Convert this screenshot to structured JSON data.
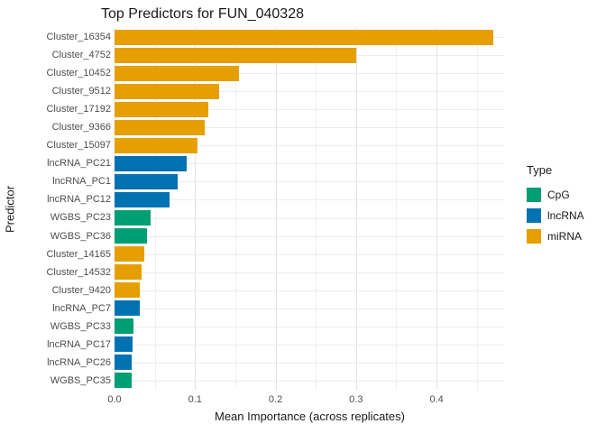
{
  "chart_data": {
    "type": "bar",
    "orientation": "horizontal",
    "title": "Top Predictors for FUN_040328",
    "xlabel": "Mean Importance (across replicates)",
    "ylabel": "Predictor",
    "xlim": [
      0,
      0.485
    ],
    "x_ticks": [
      0.0,
      0.1,
      0.2,
      0.3,
      0.4
    ],
    "x_tick_labels": [
      "0.0",
      "0.1",
      "0.2",
      "0.3",
      "0.4"
    ],
    "x_minor_ticks": [
      0.05,
      0.15,
      0.25,
      0.35,
      0.45
    ],
    "grid": true,
    "legend": {
      "title": "Type",
      "position": "right",
      "entries": [
        {
          "label": "CpG",
          "color": "#009E73"
        },
        {
          "label": "lncRNA",
          "color": "#0072B2"
        },
        {
          "label": "miRNA",
          "color": "#E69F00"
        }
      ]
    },
    "bars": [
      {
        "label": "Cluster_16354",
        "type": "miRNA",
        "value": 0.47
      },
      {
        "label": "Cluster_4752",
        "type": "miRNA",
        "value": 0.3
      },
      {
        "label": "Cluster_10452",
        "type": "miRNA",
        "value": 0.155
      },
      {
        "label": "Cluster_9512",
        "type": "miRNA",
        "value": 0.13
      },
      {
        "label": "Cluster_17192",
        "type": "miRNA",
        "value": 0.117
      },
      {
        "label": "Cluster_9366",
        "type": "miRNA",
        "value": 0.112
      },
      {
        "label": "Cluster_15097",
        "type": "miRNA",
        "value": 0.103
      },
      {
        "label": "lncRNA_PC21",
        "type": "lncRNA",
        "value": 0.09
      },
      {
        "label": "lncRNA_PC1",
        "type": "lncRNA",
        "value": 0.078
      },
      {
        "label": "lncRNA_PC12",
        "type": "lncRNA",
        "value": 0.068
      },
      {
        "label": "WGBS_PC23",
        "type": "CpG",
        "value": 0.045
      },
      {
        "label": "WGBS_PC36",
        "type": "CpG",
        "value": 0.04
      },
      {
        "label": "Cluster_14165",
        "type": "miRNA",
        "value": 0.037
      },
      {
        "label": "Cluster_14532",
        "type": "miRNA",
        "value": 0.034
      },
      {
        "label": "Cluster_9420",
        "type": "miRNA",
        "value": 0.031
      },
      {
        "label": "lncRNA_PC7",
        "type": "lncRNA",
        "value": 0.031
      },
      {
        "label": "WGBS_PC33",
        "type": "CpG",
        "value": 0.023
      },
      {
        "label": "lncRNA_PC17",
        "type": "lncRNA",
        "value": 0.022
      },
      {
        "label": "lncRNA_PC26",
        "type": "lncRNA",
        "value": 0.021
      },
      {
        "label": "WGBS_PC35",
        "type": "CpG",
        "value": 0.021
      }
    ]
  }
}
